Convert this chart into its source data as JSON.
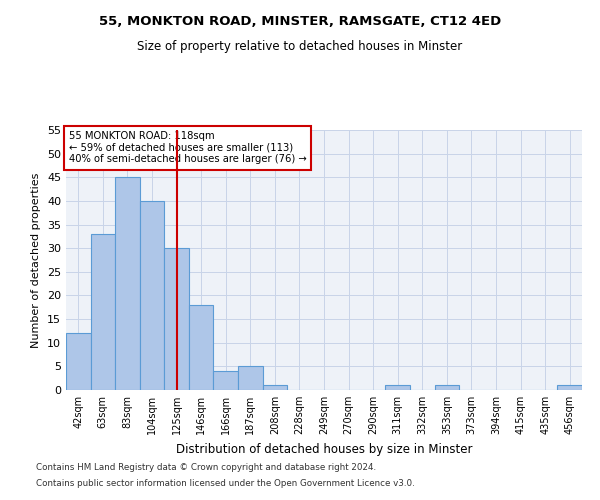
{
  "title1": "55, MONKTON ROAD, MINSTER, RAMSGATE, CT12 4ED",
  "title2": "Size of property relative to detached houses in Minster",
  "xlabel": "Distribution of detached houses by size in Minster",
  "ylabel": "Number of detached properties",
  "categories": [
    "42sqm",
    "63sqm",
    "83sqm",
    "104sqm",
    "125sqm",
    "146sqm",
    "166sqm",
    "187sqm",
    "208sqm",
    "228sqm",
    "249sqm",
    "270sqm",
    "290sqm",
    "311sqm",
    "332sqm",
    "353sqm",
    "373sqm",
    "394sqm",
    "415sqm",
    "435sqm",
    "456sqm"
  ],
  "values": [
    12,
    33,
    45,
    40,
    30,
    18,
    4,
    5,
    1,
    0,
    0,
    0,
    0,
    1,
    0,
    1,
    0,
    0,
    0,
    0,
    1
  ],
  "bar_color": "#aec6e8",
  "bar_edge_color": "#5b9bd5",
  "vline_x_index": 4,
  "vline_color": "#cc0000",
  "annotation_line1": "55 MONKTON ROAD: 118sqm",
  "annotation_line2": "← 59% of detached houses are smaller (113)",
  "annotation_line3": "40% of semi-detached houses are larger (76) →",
  "annotation_box_color": "#cc0000",
  "ylim": [
    0,
    55
  ],
  "yticks": [
    0,
    5,
    10,
    15,
    20,
    25,
    30,
    35,
    40,
    45,
    50,
    55
  ],
  "footnote1": "Contains HM Land Registry data © Crown copyright and database right 2024.",
  "footnote2": "Contains public sector information licensed under the Open Government Licence v3.0.",
  "bg_color": "#eef2f8",
  "grid_color": "#c8d4e8"
}
